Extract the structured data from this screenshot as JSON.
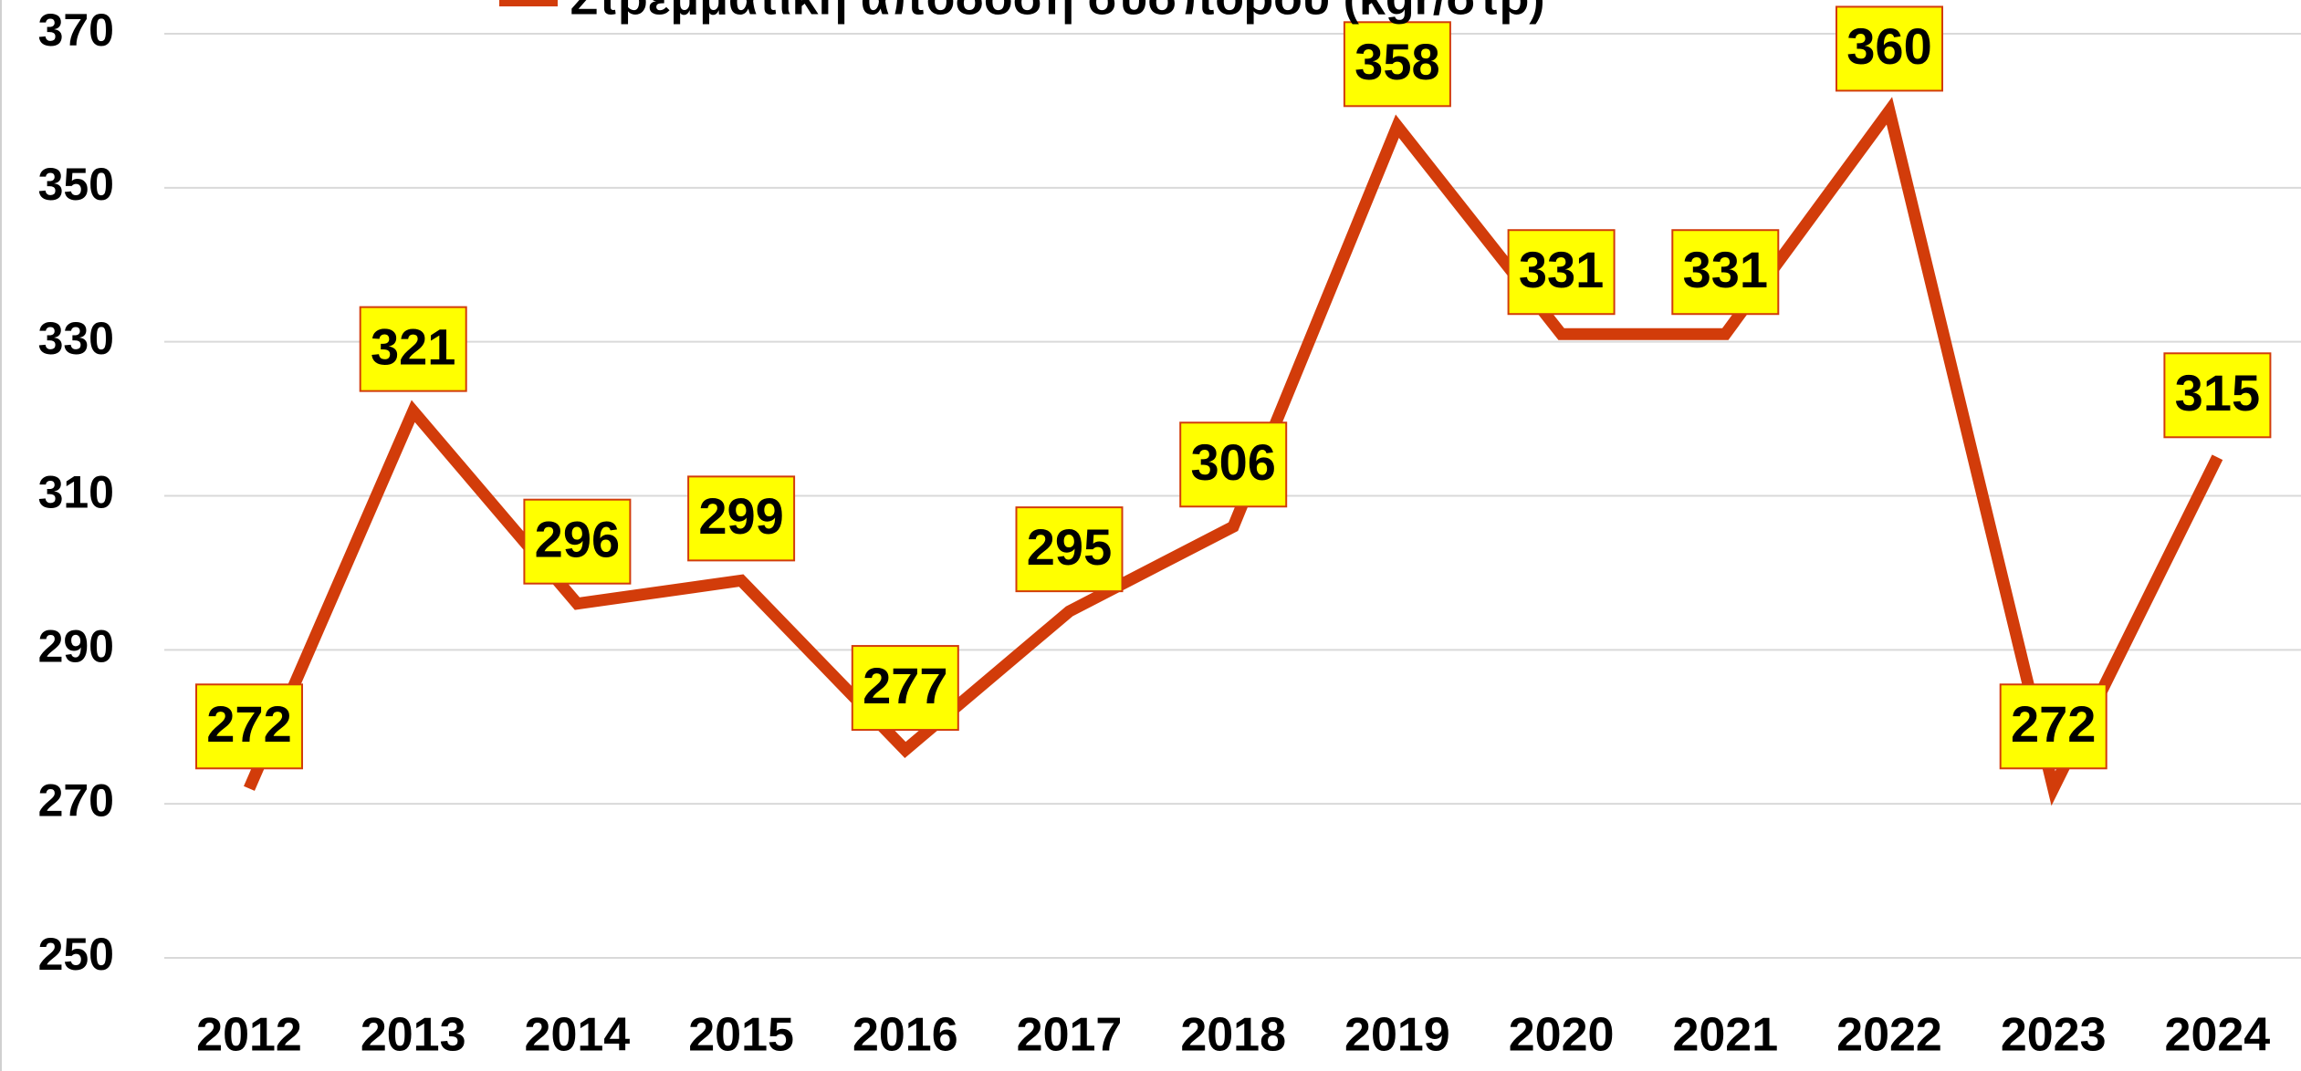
{
  "chart_data": {
    "type": "line",
    "categories": [
      "2012",
      "2013",
      "2014",
      "2015",
      "2016",
      "2017",
      "2018",
      "2019",
      "2020",
      "2021",
      "2022",
      "2023",
      "2024"
    ],
    "series": [
      {
        "name": "Στρεμματική απόδοση σύσπορου (kgr/στρ)",
        "color": "#d23c0a",
        "values": [
          272,
          321,
          296,
          299,
          277,
          295,
          306,
          358,
          331,
          331,
          360,
          272,
          315
        ]
      }
    ],
    "ylim": [
      250,
      370
    ],
    "yticks": [
      250,
      270,
      290,
      310,
      330,
      350,
      370
    ],
    "grid": true,
    "legend": "top",
    "label_fill": "#ffff00"
  }
}
